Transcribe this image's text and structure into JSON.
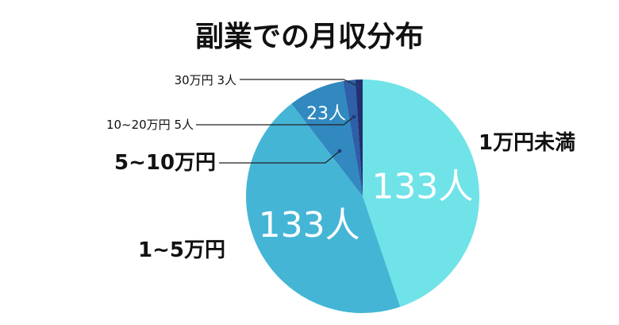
{
  "chart_data": {
    "type": "pie",
    "title": "副業での月収分布",
    "slices": [
      {
        "label": "1万円未満",
        "value": 133,
        "value_label": "133人",
        "color": "#6fe3e8"
      },
      {
        "label": "1~5万円",
        "value": 133,
        "value_label": "133人",
        "color": "#45b5d6"
      },
      {
        "label": "5~10万円",
        "value": 23,
        "value_label": "23人",
        "color": "#3189c0"
      },
      {
        "label": "10~20万円",
        "value": 5,
        "value_label": "5人",
        "color": "#2e5fa8"
      },
      {
        "label": "30万円",
        "value": 3,
        "value_label": "3人",
        "color": "#23306f"
      }
    ]
  },
  "labels": {
    "top": "30万円 3人",
    "upper": "10~20万円 5人",
    "middle": "5~10万円",
    "left": "1~5万円",
    "right": "1万円未満"
  }
}
